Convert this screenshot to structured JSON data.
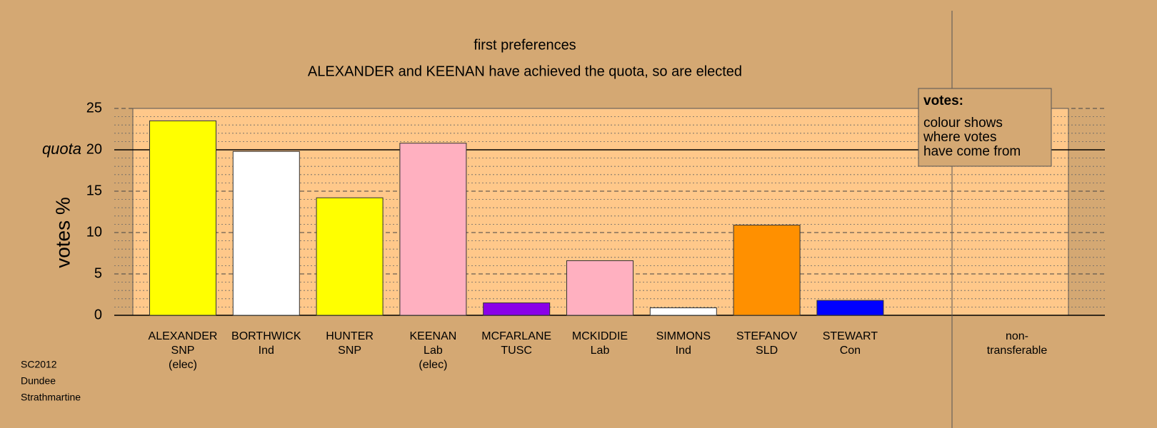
{
  "chart_data": {
    "type": "bar",
    "title": "first preferences",
    "subtitle": "ALEXANDER and KEENAN have achieved the quota, so are elected",
    "y_label": "votes %",
    "categories": [
      [
        "ALEXANDER",
        "SNP",
        "(elec)"
      ],
      [
        "BORTHWICK",
        "Ind"
      ],
      [
        "HUNTER",
        "SNP"
      ],
      [
        "KEENAN",
        "Lab",
        "(elec)"
      ],
      [
        "MCFARLANE",
        "TUSC"
      ],
      [
        "MCKIDDIE",
        "Lab"
      ],
      [
        "SIMMONS",
        "Ind"
      ],
      [
        "STEFANOV",
        "SLD"
      ],
      [
        "STEWART",
        "Con"
      ],
      null,
      [
        "non-",
        "transferable"
      ]
    ],
    "values": [
      23.5,
      19.8,
      14.2,
      20.8,
      1.5,
      6.6,
      0.9,
      10.9,
      1.8,
      null,
      null
    ],
    "colors": [
      "#ffff00",
      "#ffffff",
      "#ffff00",
      "#ffb0c0",
      "#8a00e8",
      "#ffb0c0",
      "#ffffff",
      "#ff9000",
      "#0000ff",
      null,
      null
    ],
    "ylim": [
      0,
      25
    ],
    "yticks": [
      0,
      5,
      10,
      15,
      20,
      25
    ],
    "minor_yticks": [
      1,
      2,
      3,
      4,
      6,
      7,
      8,
      9,
      11,
      12,
      13,
      14,
      16,
      17,
      18,
      19,
      21,
      22,
      23,
      24
    ],
    "quota": {
      "value": 20,
      "label": "quota"
    },
    "legend": {
      "title": "votes:",
      "lines": [
        "colour shows",
        "where votes",
        "have come from"
      ]
    },
    "notes": [
      "SC2012",
      "Dundee",
      "Strathmartine"
    ]
  }
}
